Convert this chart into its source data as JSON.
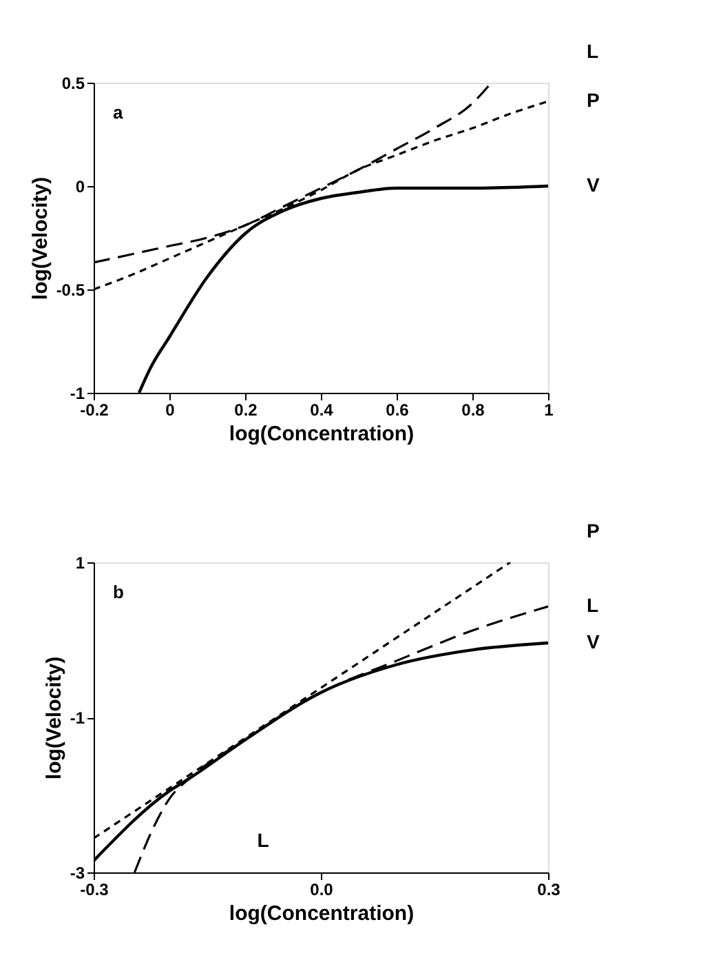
{
  "chart_data": [
    {
      "type": "line",
      "xlabel": "log(Concentration)",
      "ylabel": "log(Velocity)",
      "xlim": [
        -0.2,
        1
      ],
      "ylim": [
        -1,
        0.5
      ],
      "xticks": [
        -0.2,
        0,
        0.2,
        0.4,
        0.6,
        0.8,
        1
      ],
      "yticks": [
        -1,
        -0.5,
        0,
        0.5
      ],
      "grid": false,
      "legend": false,
      "annotations": [
        "a"
      ],
      "series": [
        {
          "name": "V",
          "color": "#000000",
          "line_style": "solid",
          "x": [
            -0.08,
            -0.05,
            0,
            0.1,
            0.2,
            0.3,
            0.4,
            0.5,
            0.6,
            0.8,
            1
          ],
          "values": [
            -1,
            -0.88,
            -0.73,
            -0.44,
            -0.23,
            -0.12,
            -0.06,
            -0.03,
            -0.01,
            -0.01,
            0
          ]
        },
        {
          "name": "L",
          "color": "#000000",
          "line_style": "dashed",
          "x": [
            -0.2,
            0,
            0.1,
            0.2,
            0.3,
            0.4,
            0.5,
            0.6,
            0.7,
            0.8,
            0.85
          ],
          "values": [
            -0.37,
            -0.29,
            -0.25,
            -0.19,
            -0.1,
            -0.01,
            0.08,
            0.18,
            0.28,
            0.4,
            0.5
          ]
        },
        {
          "name": "P",
          "color": "#000000",
          "line_style": "dotted",
          "x": [
            -0.2,
            -0.1,
            0,
            0.1,
            0.2,
            0.3,
            0.4,
            0.5,
            0.6,
            0.7,
            0.8,
            0.9,
            1
          ],
          "values": [
            -0.5,
            -0.43,
            -0.35,
            -0.27,
            -0.19,
            -0.11,
            -0.02,
            0.08,
            0.15,
            0.22,
            0.28,
            0.35,
            0.41
          ]
        }
      ]
    },
    {
      "type": "line",
      "xlabel": "log(Concentration)",
      "ylabel": "log(Velocity)",
      "xlim": [
        -0.3,
        0.3
      ],
      "ylim": [
        -3,
        1
      ],
      "xticks": [
        -0.3,
        {
          "value": 0,
          "label": "0.0"
        },
        0.3
      ],
      "yticks": [
        -3,
        -1,
        1
      ],
      "grid": false,
      "legend": false,
      "annotations": [
        "b",
        "L"
      ],
      "series": [
        {
          "name": "V",
          "color": "#000000",
          "line_style": "solid",
          "x": [
            -0.3,
            -0.2,
            -0.174,
            -0.1,
            0,
            0.1,
            0.2,
            0.3
          ],
          "values": [
            -2.85,
            -1.95,
            -1.79,
            -1.29,
            -0.68,
            -0.32,
            -0.13,
            -0.04
          ]
        },
        {
          "name": "L",
          "color": "#000000",
          "line_style": "dashed",
          "x": [
            -0.246,
            -0.22,
            -0.2,
            -0.174,
            -0.1,
            0,
            0.1,
            0.2,
            0.3
          ],
          "values": [
            -3,
            -2.4,
            -2.05,
            -1.79,
            -1.29,
            -0.68,
            -0.27,
            0.12,
            0.43
          ]
        },
        {
          "name": "P",
          "color": "#000000",
          "line_style": "dotted",
          "x": [
            -0.3,
            0,
            0.25
          ],
          "values": [
            -2.56,
            -0.62,
            1
          ]
        }
      ]
    }
  ]
}
